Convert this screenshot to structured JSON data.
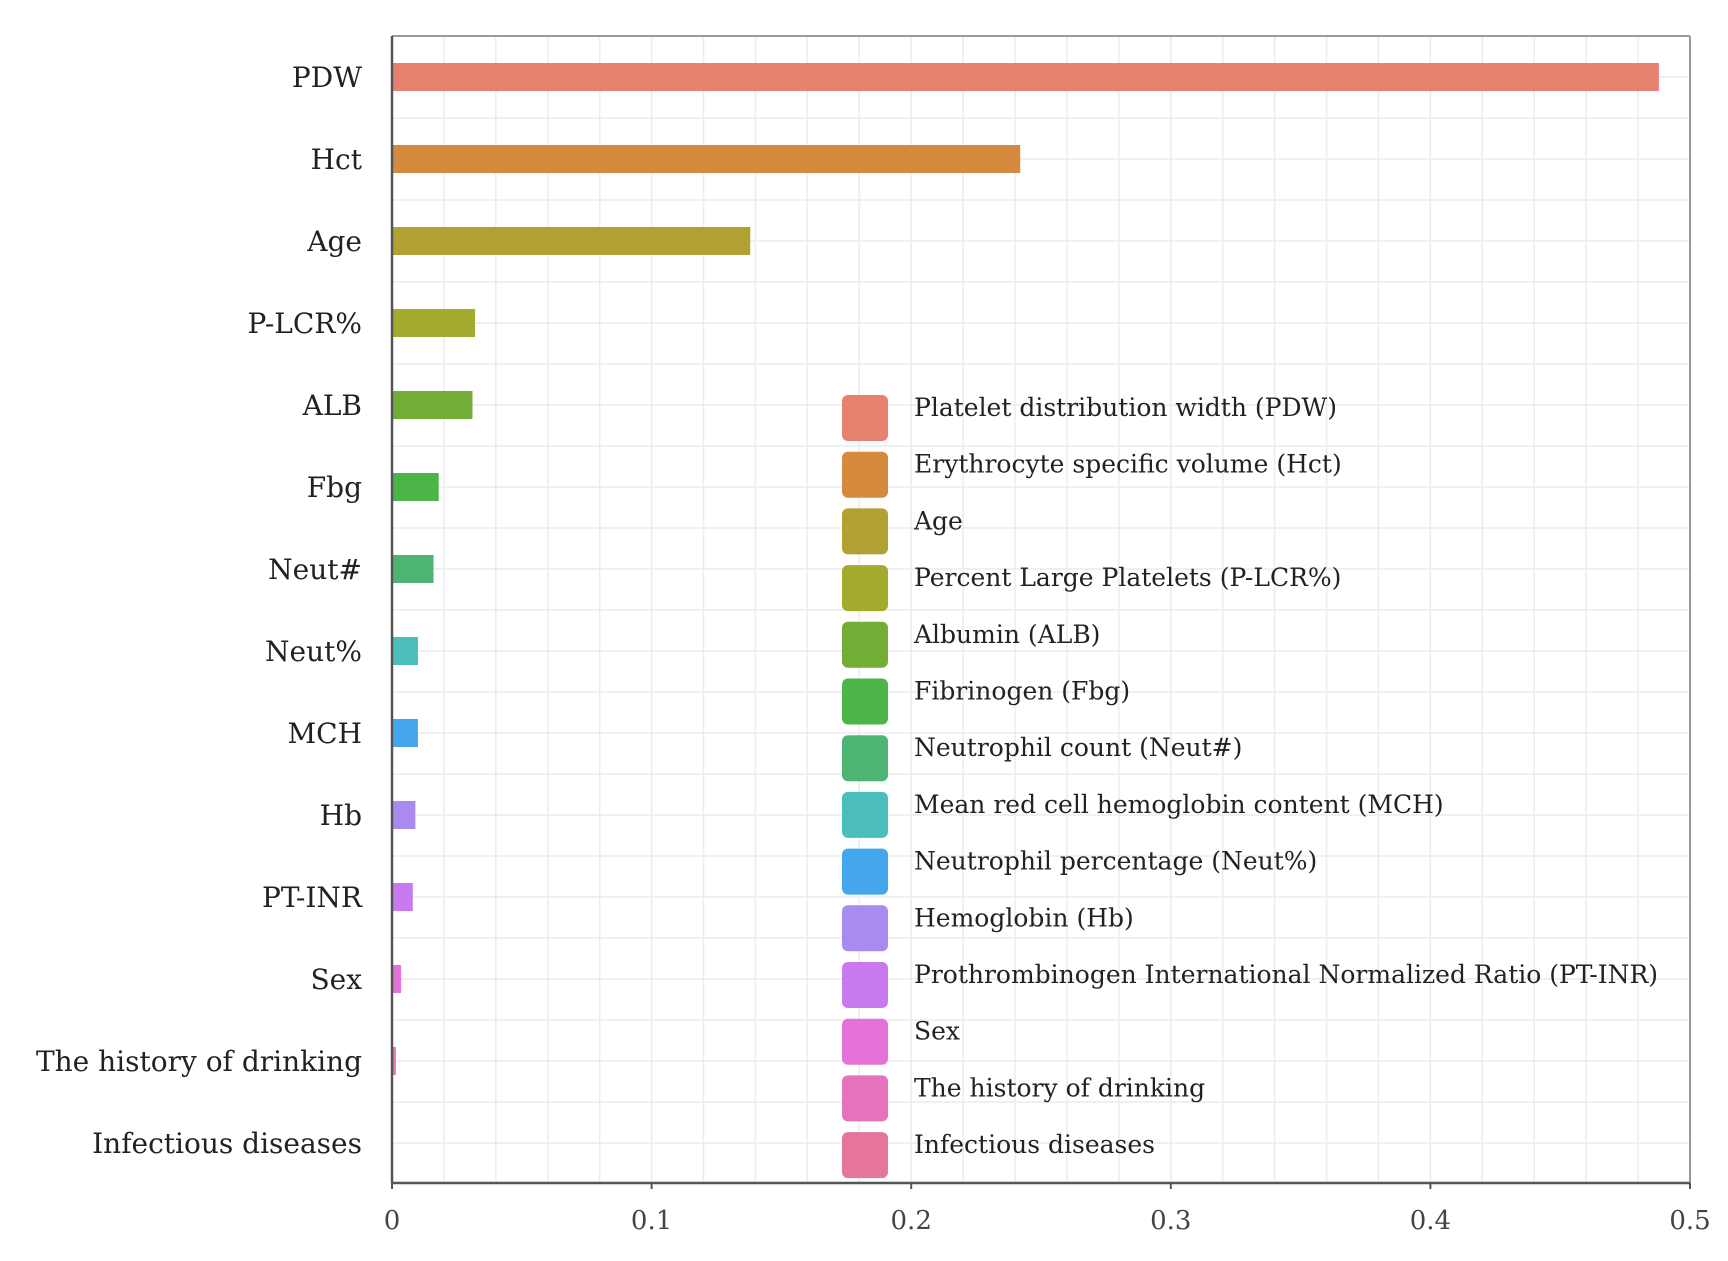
{
  "chart_data": {
    "type": "bar",
    "orientation": "horizontal",
    "title": "",
    "xlabel": "",
    "ylabel": "",
    "xlim": [
      0,
      0.5
    ],
    "x_ticks": [
      0,
      0.1,
      0.2,
      0.3,
      0.4,
      0.5
    ],
    "x_tick_labels": [
      "0",
      "0.1",
      "0.2",
      "0.3",
      "0.4",
      "0.5"
    ],
    "grid": true,
    "legend_position": "lower-right",
    "categories": [
      "PDW",
      "Hct",
      "Age",
      "P-LCR%",
      "ALB",
      "Fbg",
      "Neut#",
      "Neut%",
      "MCH",
      "Hb",
      "PT-INR",
      "Sex",
      "The history of drinking",
      "Infectious diseases"
    ],
    "values": [
      0.488,
      0.242,
      0.138,
      0.032,
      0.031,
      0.018,
      0.016,
      0.01,
      0.01,
      0.009,
      0.008,
      0.0035,
      0.0015,
      0.0
    ],
    "colors": [
      "#E6806F",
      "#D58A3D",
      "#B0A132",
      "#A2AB2E",
      "#72AD36",
      "#4DB447",
      "#4DB573",
      "#4CBDBD",
      "#44A7EE",
      "#A98BF0",
      "#C879EF",
      "#E472D8",
      "#E671BC",
      "#E6759C"
    ],
    "legend": [
      "Platelet distribution width (PDW)",
      "Erythrocyte specific volume (Hct)",
      "Age",
      "Percent Large Platelets (P-LCR%)",
      "Albumin (ALB)",
      "Fibrinogen (Fbg)",
      "Neutrophil count (Neut#)",
      "Mean red cell hemoglobin content (MCH)",
      "Neutrophil percentage (Neut%)",
      "Hemoglobin (Hb)",
      "Prothrombinogen International Normalized Ratio (PT-INR)",
      "Sex",
      "The history of drinking",
      "Infectious diseases"
    ]
  }
}
